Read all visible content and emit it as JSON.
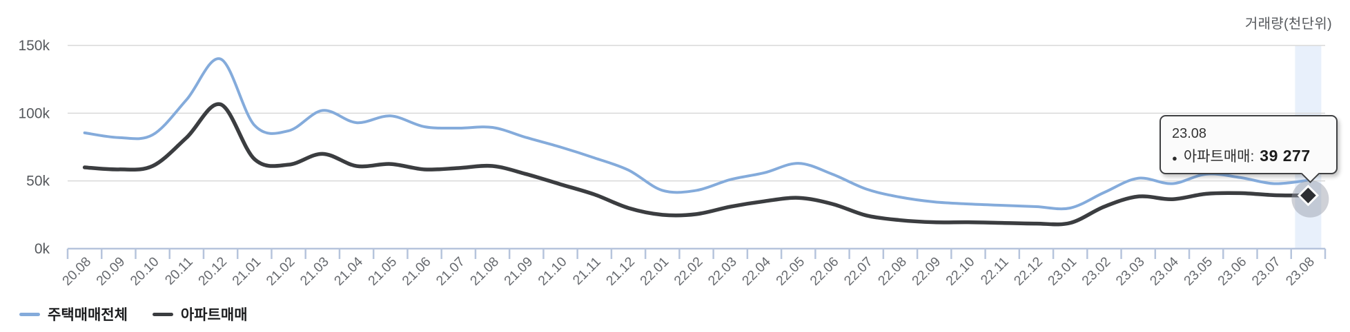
{
  "chart_data": {
    "type": "line",
    "title": "거래량(천단위)",
    "values_unit": "thousands",
    "categories": [
      "20.08",
      "20.09",
      "20.10",
      "20.11",
      "20.12",
      "21.01",
      "21.02",
      "21.03",
      "21.04",
      "21.05",
      "21.06",
      "21.07",
      "21.08",
      "21.09",
      "21.10",
      "21.11",
      "21.12",
      "22.01",
      "22.02",
      "22.03",
      "22.04",
      "22.05",
      "22.06",
      "22.07",
      "22.08",
      "22.09",
      "22.10",
      "22.11",
      "22.12",
      "23.01",
      "23.02",
      "23.03",
      "23.04",
      "23.05",
      "23.06",
      "23.07",
      "23.08"
    ],
    "series": [
      {
        "name": "주택매매전체",
        "color": "#84abdb",
        "line_width": 4,
        "values": [
          85.5,
          82,
          84,
          110,
          140,
          91,
          87,
          102,
          93,
          98,
          90,
          89,
          89.5,
          82,
          75,
          67,
          58,
          43,
          43,
          51,
          56,
          63,
          55,
          44,
          38,
          34.5,
          33,
          32,
          31,
          30,
          41.5,
          52,
          48,
          55,
          52.5,
          48,
          50.5
        ]
      },
      {
        "name": "아파트매매",
        "color": "#3b3d40",
        "line_width": 5.5,
        "values": [
          60,
          58.5,
          61,
          82,
          106.5,
          66,
          62,
          70,
          61,
          62.5,
          58.5,
          59.5,
          61,
          55,
          47.5,
          40,
          30,
          25,
          25.5,
          31,
          35,
          37.5,
          33,
          24.5,
          21,
          19.5,
          19.5,
          19,
          18.5,
          19,
          31,
          38.5,
          36.5,
          40.5,
          41,
          39.5,
          39.277
        ]
      }
    ],
    "ylim": [
      0,
      150
    ],
    "yticks": [
      {
        "value": 150,
        "label": "150k"
      },
      {
        "value": 100,
        "label": "100k"
      },
      {
        "value": 50,
        "label": "50k"
      },
      {
        "value": 0,
        "label": "0k"
      }
    ],
    "grid": true,
    "legend_position": "bottom-left",
    "x_label_rotation": -45,
    "highlight_index": 36,
    "selected_point": {
      "category": "23.08",
      "series": "아파트매매",
      "value": 39277
    }
  },
  "tooltip": {
    "title": "23.08",
    "dot": "●",
    "series_label": "아파트매매:",
    "value": "39 277"
  },
  "legend": {
    "items": [
      {
        "label": "주택매매전체",
        "color": "#84abdb"
      },
      {
        "label": "아파트매매",
        "color": "#3b3d40"
      }
    ]
  },
  "colors": {
    "band": "#e8f0fb",
    "grid": "#d9d9d9",
    "axis": "#b6c4dc",
    "halo": "rgba(148,154,166,0.45)",
    "marker_fill": "#2d2f33",
    "marker_stroke": "#ffffff",
    "axis_text": "#66696e",
    "ytick_text": "#55585c"
  }
}
